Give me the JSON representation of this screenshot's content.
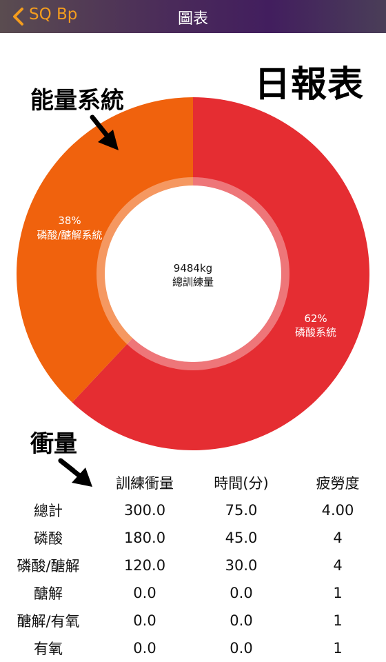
{
  "navbar": {
    "back_label": "SQ Bp",
    "title": "圖表",
    "accent_color": "#f39c1e"
  },
  "report_title": "日報表",
  "annotations": {
    "energy_system": "能量系統",
    "volume": "衝量"
  },
  "donut": {
    "center_value": "9484kg",
    "center_label": "總訓練量",
    "segments": [
      {
        "percent_label": "62%",
        "name": "磷酸系統",
        "fraction": 0.62,
        "color": "#e52d32"
      },
      {
        "percent_label": "38%",
        "name": "磷酸/醣解系統",
        "fraction": 0.38,
        "color": "#f0620d"
      }
    ]
  },
  "table": {
    "headers": [
      "",
      "訓練衝量",
      "時間(分)",
      "疲勞度"
    ],
    "rows": [
      {
        "label": "總計",
        "volume": "300.0",
        "time": "75.0",
        "fatigue": "4.00"
      },
      {
        "label": "磷酸",
        "volume": "180.0",
        "time": "45.0",
        "fatigue": "4"
      },
      {
        "label": "磷酸/醣解",
        "volume": "120.0",
        "time": "30.0",
        "fatigue": "4"
      },
      {
        "label": "醣解",
        "volume": "0.0",
        "time": "0.0",
        "fatigue": "1"
      },
      {
        "label": "醣解/有氧",
        "volume": "0.0",
        "time": "0.0",
        "fatigue": "1"
      },
      {
        "label": "有氧",
        "volume": "0.0",
        "time": "0.0",
        "fatigue": "1"
      }
    ]
  }
}
